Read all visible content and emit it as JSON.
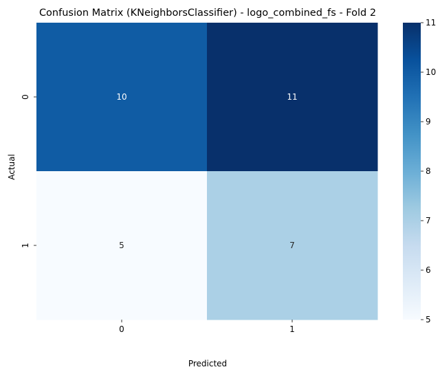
{
  "chart_data": {
    "type": "heatmap",
    "title": "Confusion Matrix (KNeighborsClassifier) - logo_combined_fs - Fold 2",
    "xlabel": "Predicted",
    "ylabel": "Actual",
    "x_categories": [
      "0",
      "1"
    ],
    "y_categories": [
      "0",
      "1"
    ],
    "values": [
      [
        10,
        11
      ],
      [
        5,
        7
      ]
    ],
    "cell_labels": [
      [
        "10",
        "11"
      ],
      [
        "5",
        "7"
      ]
    ],
    "colormap": "Blues",
    "vmin": 5,
    "vmax": 11,
    "colorbar_ticks": [
      5,
      6,
      7,
      8,
      9,
      10,
      11
    ],
    "colorbar_tick_labels": [
      "5",
      "6",
      "7",
      "8",
      "9",
      "10",
      "11"
    ]
  }
}
